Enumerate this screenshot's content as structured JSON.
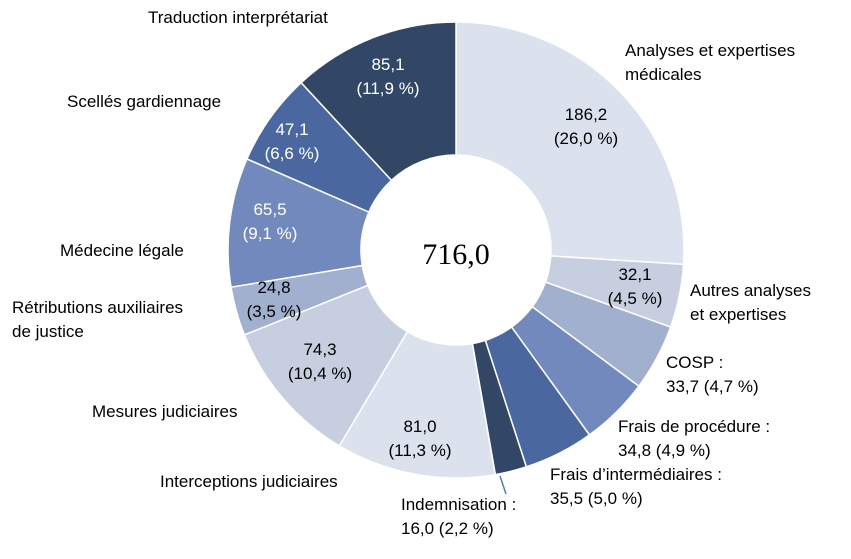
{
  "chart_data": {
    "type": "pie",
    "center_total": "716,0",
    "slices": [
      {
        "category": "Analyses et expertises médicales",
        "label_lines": [
          "Analyses et expertises",
          "médicales"
        ],
        "value": 186.2,
        "percent": 26.0,
        "value_text": "186,2",
        "percent_text": "(26,0 %)",
        "color": "#dce1ee"
      },
      {
        "category": "Autres analyses et expertises",
        "label_lines": [
          "Autres analyses",
          "et expertises"
        ],
        "value": 32.1,
        "percent": 4.5,
        "value_text": "32,1",
        "percent_text": "(4,5 %)",
        "color": "#c6cedf"
      },
      {
        "category": "COSP",
        "label_lines": [
          "COSP :",
          "33,7 (4,7 %)"
        ],
        "value": 33.7,
        "percent": 4.7,
        "value_text": "",
        "percent_text": "",
        "color": "#a2b0cf"
      },
      {
        "category": "Frais de procédure",
        "label_lines": [
          "Frais de procédure :",
          "34,8 (4,9 %)"
        ],
        "value": 34.8,
        "percent": 4.9,
        "value_text": "",
        "percent_text": "",
        "color": "#7189bc"
      },
      {
        "category": "Frais d'intermédiaires",
        "label_lines": [
          "Frais d’intermédiaires :",
          "35,5 (5,0 %)"
        ],
        "value": 35.5,
        "percent": 5.0,
        "value_text": "",
        "percent_text": "",
        "color": "#4a679f"
      },
      {
        "category": "Indemnisation",
        "label_lines": [
          "Indemnisation :",
          "16,0 (2,2 %)"
        ],
        "value": 16.0,
        "percent": 2.2,
        "value_text": "",
        "percent_text": "",
        "color": "#324766"
      },
      {
        "category": "Interceptions judiciaires",
        "label_lines": [
          "Interceptions judiciaires"
        ],
        "value": 81.0,
        "percent": 11.3,
        "value_text": "81,0",
        "percent_text": "(11,3 %)",
        "color": "#dce1ee"
      },
      {
        "category": "Mesures judiciaires",
        "label_lines": [
          "Mesures judiciaires"
        ],
        "value": 74.3,
        "percent": 10.4,
        "value_text": "74,3",
        "percent_text": "(10,4 %)",
        "color": "#c6cedf"
      },
      {
        "category": "Rétributions auxiliaires de justice",
        "label_lines": [
          "Rétributions auxiliaires",
          "de justice"
        ],
        "value": 24.8,
        "percent": 3.5,
        "value_text": "24,8",
        "percent_text": "(3,5 %)",
        "color": "#a2b0cf"
      },
      {
        "category": "Médecine légale",
        "label_lines": [
          "Médecine légale"
        ],
        "value": 65.5,
        "percent": 9.1,
        "value_text": "65,5",
        "percent_text": "(9,1 %)",
        "color": "#7189bc"
      },
      {
        "category": "Scellés gardiennage",
        "label_lines": [
          "Scellés gardiennage"
        ],
        "value": 47.1,
        "percent": 6.6,
        "value_text": "47,1",
        "percent_text": "(6,6 %)",
        "color": "#4a679f"
      },
      {
        "category": "Traduction interprétariat",
        "label_lines": [
          "Traduction interprétariat"
        ],
        "value": 85.1,
        "percent": 11.9,
        "value_text": "85,1",
        "percent_text": "(11,9 %)",
        "color": "#324766"
      }
    ]
  }
}
